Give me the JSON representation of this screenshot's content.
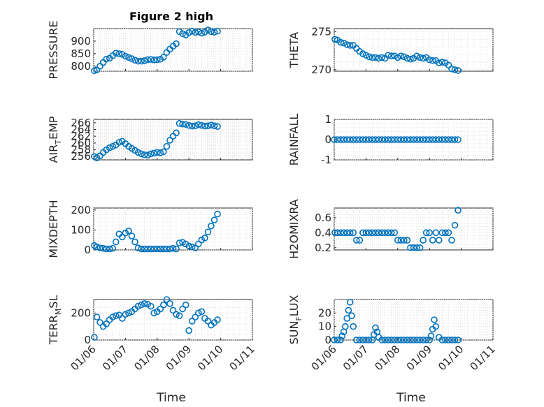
{
  "figure": {
    "title": "Figure 2 high",
    "marker_color": "#0072BD",
    "x_tick_labels": [
      "01/06",
      "01/07",
      "01/08",
      "01/09",
      "01/10",
      "01/11"
    ],
    "x_label": "Time"
  },
  "chart_data": [
    {
      "id": "pressure",
      "type": "scatter",
      "marker": "o",
      "ylabel": "PRESSURE",
      "ylabel_sub": "",
      "xlim": [
        0,
        5
      ],
      "ylim": [
        780,
        950
      ],
      "yticks": [
        800,
        850,
        900
      ],
      "ytick_labels": [
        "800",
        "850",
        "900"
      ],
      "x": [
        0.02,
        0.1,
        0.2,
        0.3,
        0.4,
        0.5,
        0.6,
        0.7,
        0.8,
        0.9,
        1.0,
        1.1,
        1.2,
        1.3,
        1.4,
        1.5,
        1.6,
        1.7,
        1.8,
        1.9,
        2.0,
        2.1,
        2.2,
        2.3,
        2.4,
        2.5,
        2.6,
        2.7,
        2.8,
        2.9,
        3.0,
        3.1,
        3.2,
        3.3,
        3.4,
        3.5,
        3.6,
        3.7,
        3.8,
        3.9
      ],
      "y": [
        782,
        785,
        800,
        815,
        828,
        832,
        842,
        852,
        850,
        847,
        840,
        835,
        830,
        824,
        820,
        820,
        822,
        826,
        827,
        825,
        826,
        828,
        836,
        855,
        868,
        880,
        890,
        938,
        930,
        925,
        934,
        940,
        935,
        937,
        932,
        936,
        945,
        938,
        936,
        940
      ]
    },
    {
      "id": "theta",
      "type": "scatter",
      "marker": "o",
      "ylabel": "THETA",
      "ylabel_sub": "",
      "xlim": [
        0,
        5
      ],
      "ylim": [
        269.8,
        275.4
      ],
      "yticks": [
        270,
        275
      ],
      "ytick_labels": [
        "270",
        "275"
      ],
      "x": [
        0.02,
        0.1,
        0.2,
        0.3,
        0.4,
        0.5,
        0.6,
        0.7,
        0.8,
        0.9,
        1.0,
        1.1,
        1.2,
        1.3,
        1.4,
        1.5,
        1.6,
        1.7,
        1.8,
        1.9,
        2.0,
        2.1,
        2.2,
        2.3,
        2.4,
        2.5,
        2.6,
        2.7,
        2.8,
        2.9,
        3.0,
        3.1,
        3.2,
        3.3,
        3.4,
        3.5,
        3.6,
        3.7,
        3.8,
        3.9
      ],
      "y": [
        274.0,
        273.9,
        273.6,
        273.5,
        273.3,
        273.2,
        273.2,
        272.8,
        272.4,
        272.1,
        271.9,
        271.7,
        271.6,
        271.6,
        271.5,
        271.6,
        271.5,
        271.9,
        271.8,
        271.8,
        271.6,
        271.8,
        271.7,
        271.5,
        271.4,
        271.5,
        271.8,
        271.6,
        271.5,
        271.6,
        271.3,
        271.2,
        271.2,
        270.9,
        271.0,
        270.9,
        270.6,
        270.1,
        270.0,
        269.9
      ]
    },
    {
      "id": "air-temp",
      "type": "scatter",
      "marker": "o",
      "ylabel": "AIR",
      "ylabel_sub": "T",
      "ylabel_tail": "EMP",
      "xlim": [
        0,
        5
      ],
      "ylim": [
        255,
        267
      ],
      "yticks": [
        256,
        258,
        260,
        262,
        264,
        266
      ],
      "ytick_labels": [
        "256",
        "258",
        "260",
        "262",
        "264",
        "266"
      ],
      "x": [
        0.02,
        0.1,
        0.2,
        0.3,
        0.4,
        0.5,
        0.6,
        0.7,
        0.8,
        0.9,
        1.0,
        1.1,
        1.2,
        1.3,
        1.4,
        1.5,
        1.6,
        1.7,
        1.8,
        1.9,
        2.0,
        2.1,
        2.2,
        2.3,
        2.4,
        2.5,
        2.6,
        2.7,
        2.8,
        2.9,
        3.0,
        3.1,
        3.2,
        3.3,
        3.4,
        3.5,
        3.6,
        3.7,
        3.8,
        3.9
      ],
      "y": [
        256.0,
        255.6,
        256.2,
        257.2,
        258.0,
        258.6,
        259.0,
        259.4,
        260.2,
        260.5,
        259.8,
        259.0,
        258.4,
        257.8,
        257.2,
        256.8,
        256.5,
        256.4,
        256.8,
        257.0,
        257.2,
        257.1,
        257.4,
        259.0,
        260.8,
        262.0,
        263.0,
        265.8,
        265.6,
        265.5,
        265.2,
        265.0,
        265.1,
        265.4,
        265.2,
        265.0,
        265.1,
        265.3,
        265.1,
        264.9
      ]
    },
    {
      "id": "rainfall",
      "type": "scatter",
      "marker": "o",
      "ylabel": "RAINFALL",
      "ylabel_sub": "",
      "xlim": [
        0,
        5
      ],
      "ylim": [
        -1,
        1
      ],
      "yticks": [
        -1,
        0,
        1
      ],
      "ytick_labels": [
        "-1",
        "0",
        "1"
      ],
      "x": [
        0.0,
        0.1,
        0.2,
        0.3,
        0.4,
        0.5,
        0.6,
        0.7,
        0.8,
        0.9,
        1.0,
        1.1,
        1.2,
        1.3,
        1.4,
        1.5,
        1.6,
        1.7,
        1.8,
        1.9,
        2.0,
        2.1,
        2.2,
        2.3,
        2.4,
        2.5,
        2.6,
        2.7,
        2.8,
        2.9,
        3.0,
        3.1,
        3.2,
        3.3,
        3.4,
        3.5,
        3.6,
        3.7,
        3.8,
        3.9
      ],
      "y": [
        0,
        0,
        0,
        0,
        0,
        0,
        0,
        0,
        0,
        0,
        0,
        0,
        0,
        0,
        0,
        0,
        0,
        0,
        0,
        0,
        0,
        0,
        0,
        0,
        0,
        0,
        0,
        0,
        0,
        0,
        0,
        0,
        0,
        0,
        0,
        0,
        0,
        0,
        0,
        0
      ]
    },
    {
      "id": "mixdepth",
      "type": "scatter",
      "marker": "o",
      "ylabel": "MIXDEPTH",
      "ylabel_sub": "",
      "xlim": [
        0,
        5
      ],
      "ylim": [
        0,
        210
      ],
      "yticks": [
        0,
        100,
        200
      ],
      "ytick_labels": [
        "0",
        "100",
        "200"
      ],
      "x": [
        0.02,
        0.1,
        0.2,
        0.3,
        0.4,
        0.5,
        0.6,
        0.7,
        0.8,
        0.9,
        1.0,
        1.1,
        1.2,
        1.3,
        1.4,
        1.5,
        1.6,
        1.7,
        1.8,
        1.9,
        2.0,
        2.1,
        2.2,
        2.3,
        2.4,
        2.5,
        2.6,
        2.7,
        2.8,
        2.9,
        3.0,
        3.1,
        3.2,
        3.3,
        3.4,
        3.5,
        3.6,
        3.7,
        3.8,
        3.9
      ],
      "y": [
        22,
        15,
        10,
        8,
        5,
        5,
        8,
        40,
        80,
        65,
        85,
        95,
        70,
        40,
        10,
        5,
        5,
        5,
        5,
        5,
        5,
        5,
        5,
        5,
        5,
        8,
        5,
        35,
        38,
        30,
        20,
        15,
        10,
        30,
        50,
        60,
        90,
        120,
        150,
        180
      ]
    },
    {
      "id": "h2omixra",
      "type": "scatter",
      "marker": "o",
      "ylabel": "H2OMIXRA",
      "ylabel_sub": "",
      "xlim": [
        0,
        5
      ],
      "ylim": [
        0.17,
        0.73
      ],
      "yticks": [
        0.2,
        0.4,
        0.6
      ],
      "ytick_labels": [
        "0.2",
        "0.4",
        "0.6"
      ],
      "x": [
        0.02,
        0.1,
        0.2,
        0.3,
        0.4,
        0.5,
        0.6,
        0.7,
        0.8,
        0.9,
        1.0,
        1.1,
        1.2,
        1.3,
        1.4,
        1.5,
        1.6,
        1.7,
        1.8,
        1.9,
        2.0,
        2.1,
        2.2,
        2.3,
        2.4,
        2.5,
        2.6,
        2.7,
        2.8,
        2.9,
        3.0,
        3.1,
        3.2,
        3.3,
        3.4,
        3.5,
        3.6,
        3.7,
        3.8,
        3.9
      ],
      "y": [
        0.4,
        0.4,
        0.4,
        0.4,
        0.4,
        0.4,
        0.4,
        0.3,
        0.3,
        0.4,
        0.4,
        0.4,
        0.4,
        0.4,
        0.4,
        0.4,
        0.4,
        0.4,
        0.4,
        0.4,
        0.3,
        0.3,
        0.3,
        0.3,
        0.2,
        0.2,
        0.2,
        0.2,
        0.3,
        0.4,
        0.4,
        0.3,
        0.4,
        0.3,
        0.4,
        0.4,
        0.4,
        0.3,
        0.5,
        0.7
      ]
    },
    {
      "id": "terr-msl",
      "type": "scatter",
      "marker": "o",
      "ylabel": "TERR",
      "ylabel_sub": "M",
      "ylabel_tail": "SL",
      "xlim": [
        0,
        5
      ],
      "ylim": [
        0,
        300
      ],
      "yticks": [
        0,
        200
      ],
      "ytick_labels": [
        "0",
        "200"
      ],
      "x": [
        0.02,
        0.1,
        0.2,
        0.3,
        0.4,
        0.5,
        0.6,
        0.7,
        0.8,
        0.9,
        1.0,
        1.1,
        1.2,
        1.3,
        1.4,
        1.5,
        1.6,
        1.7,
        1.8,
        1.9,
        2.0,
        2.1,
        2.2,
        2.3,
        2.4,
        2.5,
        2.6,
        2.7,
        2.8,
        2.9,
        3.0,
        3.1,
        3.2,
        3.3,
        3.4,
        3.5,
        3.6,
        3.7,
        3.8,
        3.9
      ],
      "y": [
        20,
        170,
        130,
        100,
        120,
        150,
        170,
        180,
        185,
        160,
        190,
        200,
        210,
        230,
        250,
        260,
        270,
        265,
        250,
        200,
        210,
        230,
        260,
        300,
        270,
        220,
        190,
        180,
        230,
        260,
        70,
        140,
        170,
        200,
        210,
        160,
        140,
        110,
        130,
        150
      ]
    },
    {
      "id": "sun-flux",
      "type": "scatter",
      "marker": "o",
      "ylabel": "SUN",
      "ylabel_sub": "F",
      "ylabel_tail": "LUX",
      "xlim": [
        0,
        5
      ],
      "ylim": [
        0,
        30
      ],
      "yticks": [
        0,
        10,
        20
      ],
      "ytick_labels": [
        "0",
        "10",
        "20"
      ],
      "x": [
        0.0,
        0.1,
        0.2,
        0.25,
        0.3,
        0.35,
        0.4,
        0.45,
        0.5,
        0.55,
        0.6,
        0.7,
        0.8,
        0.9,
        1.0,
        1.1,
        1.2,
        1.25,
        1.3,
        1.35,
        1.4,
        1.5,
        1.6,
        1.7,
        1.8,
        1.9,
        2.0,
        2.1,
        2.2,
        2.3,
        2.4,
        2.5,
        2.6,
        2.7,
        2.8,
        2.9,
        3.0,
        3.05,
        3.1,
        3.15,
        3.2,
        3.3,
        3.4,
        3.5,
        3.6,
        3.7,
        3.8,
        3.9
      ],
      "y": [
        0,
        0,
        0,
        3,
        6,
        10,
        16,
        22,
        28,
        18,
        10,
        0,
        0,
        0,
        0,
        0,
        0,
        4,
        9,
        6,
        2,
        0,
        0,
        0,
        0,
        0,
        0,
        0,
        0,
        0,
        0,
        0,
        0,
        0,
        0,
        0,
        0,
        3,
        8,
        15,
        10,
        2,
        0,
        0,
        0,
        0,
        0,
        0
      ]
    }
  ]
}
